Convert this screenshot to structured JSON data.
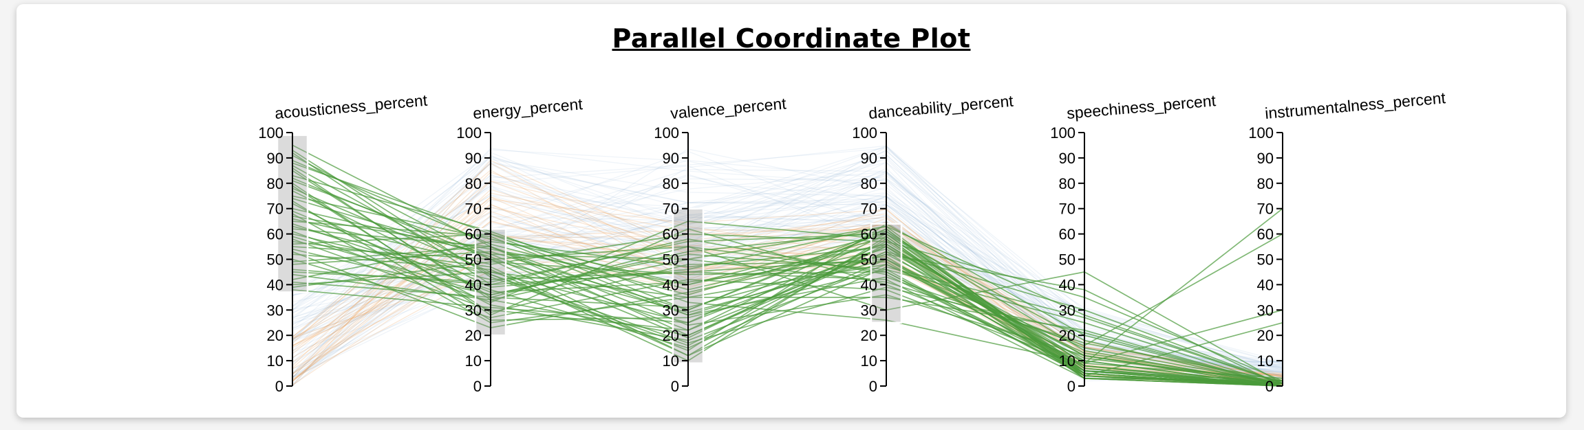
{
  "chart_data": {
    "type": "parallel_coordinates",
    "title": "Parallel Coordinate Plot",
    "axes": [
      {
        "name": "acousticness_percent",
        "ticks": [
          "0",
          "10",
          "20",
          "30",
          "40",
          "50",
          "60",
          "70",
          "80",
          "90",
          "100"
        ],
        "brush": [
          37,
          99
        ]
      },
      {
        "name": "energy_percent",
        "ticks": [
          "0",
          "10",
          "20",
          "30",
          "40",
          "50",
          "60",
          "70",
          "80",
          "90",
          "100"
        ],
        "brush": [
          20,
          62
        ]
      },
      {
        "name": "valence_percent",
        "ticks": [
          "0",
          "10",
          "20",
          "30",
          "40",
          "50",
          "60",
          "70",
          "80",
          "90",
          "100"
        ],
        "brush": [
          9,
          70
        ]
      },
      {
        "name": "danceability_percent",
        "ticks": [
          "0",
          "10",
          "20",
          "30",
          "40",
          "50",
          "60",
          "70",
          "80",
          "90",
          "100"
        ],
        "brush": [
          25,
          64
        ]
      },
      {
        "name": "speechiness_percent",
        "ticks": [
          "0",
          "10",
          "20",
          "30",
          "40",
          "50",
          "60",
          "70",
          "80",
          "90",
          "100"
        ],
        "brush": null
      },
      {
        "name": "instrumentalness_percent",
        "ticks": [
          "0",
          "10",
          "20",
          "30",
          "40",
          "50",
          "60",
          "70",
          "80",
          "90",
          "100"
        ],
        "brush": null
      }
    ],
    "ylim": [
      0,
      100
    ],
    "colors": {
      "selected": "#4a9a3a",
      "orange": "#e8954a",
      "blue": "#7aa6d0",
      "grey": "#bbbbbb"
    },
    "selected_lines": [
      [
        95,
        55,
        20,
        55,
        12,
        0
      ],
      [
        92,
        40,
        45,
        50,
        8,
        1
      ],
      [
        88,
        60,
        30,
        62,
        5,
        0
      ],
      [
        85,
        35,
        55,
        45,
        4,
        1
      ],
      [
        82,
        50,
        12,
        58,
        6,
        0
      ],
      [
        80,
        28,
        62,
        40,
        10,
        0
      ],
      [
        78,
        45,
        25,
        55,
        3,
        2
      ],
      [
        75,
        58,
        40,
        60,
        7,
        0
      ],
      [
        72,
        32,
        18,
        48,
        15,
        1
      ],
      [
        70,
        52,
        50,
        63,
        4,
        0
      ],
      [
        68,
        25,
        35,
        35,
        22,
        0
      ],
      [
        66,
        48,
        60,
        57,
        9,
        3
      ],
      [
        64,
        38,
        15,
        50,
        5,
        0
      ],
      [
        62,
        55,
        28,
        52,
        12,
        1
      ],
      [
        60,
        42,
        45,
        42,
        3,
        0
      ],
      [
        58,
        30,
        22,
        60,
        18,
        0
      ],
      [
        56,
        60,
        38,
        56,
        6,
        2
      ],
      [
        54,
        36,
        52,
        46,
        25,
        0
      ],
      [
        52,
        46,
        10,
        59,
        4,
        1
      ],
      [
        50,
        27,
        42,
        38,
        8,
        0
      ],
      [
        48,
        53,
        30,
        61,
        14,
        0
      ],
      [
        46,
        40,
        58,
        44,
        5,
        0
      ],
      [
        44,
        34,
        20,
        53,
        30,
        1
      ],
      [
        42,
        57,
        47,
        55,
        7,
        0
      ],
      [
        40,
        45,
        35,
        48,
        11,
        2
      ],
      [
        38,
        31,
        25,
        62,
        3,
        0
      ],
      [
        91,
        50,
        55,
        30,
        45,
        1
      ],
      [
        87,
        44,
        14,
        64,
        20,
        0
      ],
      [
        83,
        61,
        33,
        26,
        9,
        70
      ],
      [
        79,
        29,
        48,
        49,
        6,
        0
      ],
      [
        74,
        51,
        19,
        57,
        35,
        2
      ],
      [
        69,
        37,
        41,
        51,
        4,
        0
      ],
      [
        65,
        59,
        28,
        43,
        16,
        60
      ],
      [
        61,
        33,
        65,
        58,
        5,
        0
      ],
      [
        57,
        47,
        12,
        47,
        27,
        1
      ],
      [
        53,
        23,
        37,
        54,
        8,
        0
      ],
      [
        49,
        55,
        24,
        36,
        12,
        0
      ],
      [
        45,
        41,
        57,
        60,
        4,
        25
      ],
      [
        41,
        35,
        31,
        52,
        38,
        0
      ],
      [
        39,
        49,
        44,
        45,
        6,
        1
      ],
      [
        93,
        43,
        16,
        56,
        10,
        0
      ],
      [
        89,
        56,
        36,
        59,
        3,
        0
      ],
      [
        86,
        34,
        50,
        41,
        17,
        2
      ],
      [
        81,
        52,
        22,
        53,
        5,
        0
      ],
      [
        77,
        39,
        46,
        63,
        28,
        1
      ],
      [
        73,
        26,
        27,
        46,
        4,
        0
      ],
      [
        67,
        54,
        40,
        56,
        9,
        30
      ],
      [
        63,
        44,
        17,
        39,
        21,
        0
      ],
      [
        59,
        36,
        53,
        61,
        6,
        0
      ],
      [
        55,
        50,
        29,
        50,
        13,
        1
      ]
    ],
    "background_lines": 70
  }
}
